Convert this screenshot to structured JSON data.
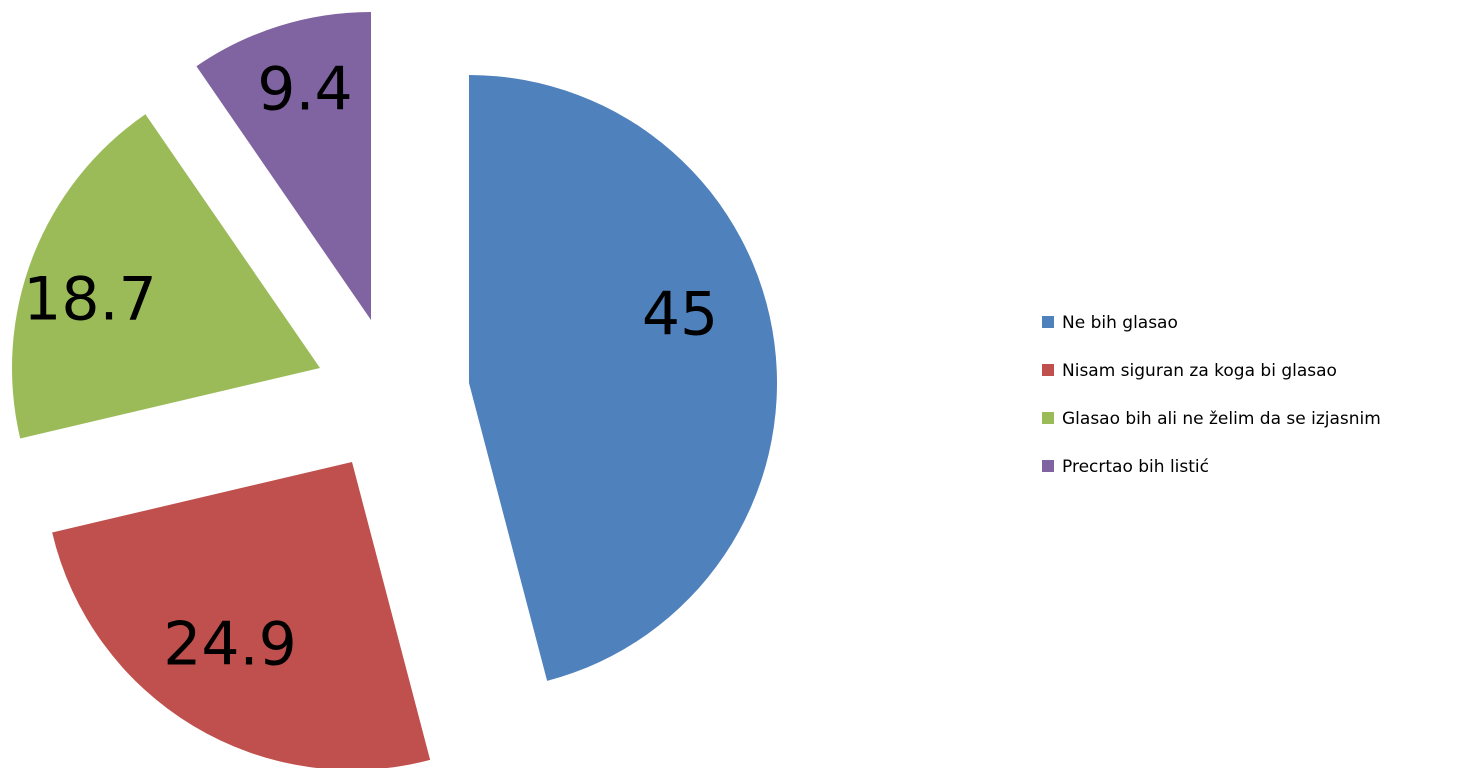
{
  "chart_data": {
    "type": "pie",
    "categories": [
      "Ne bih glasao",
      "Nisam siguran za koga bi glasao",
      "Glasao bih ali ne želim da se izjasnim",
      "Precrtao bih listić"
    ],
    "values": [
      45,
      24.9,
      18.7,
      9.4
    ],
    "colors": [
      "#4f81bd",
      "#c0504d",
      "#9bbb59",
      "#8064a2"
    ],
    "legend": "right"
  }
}
